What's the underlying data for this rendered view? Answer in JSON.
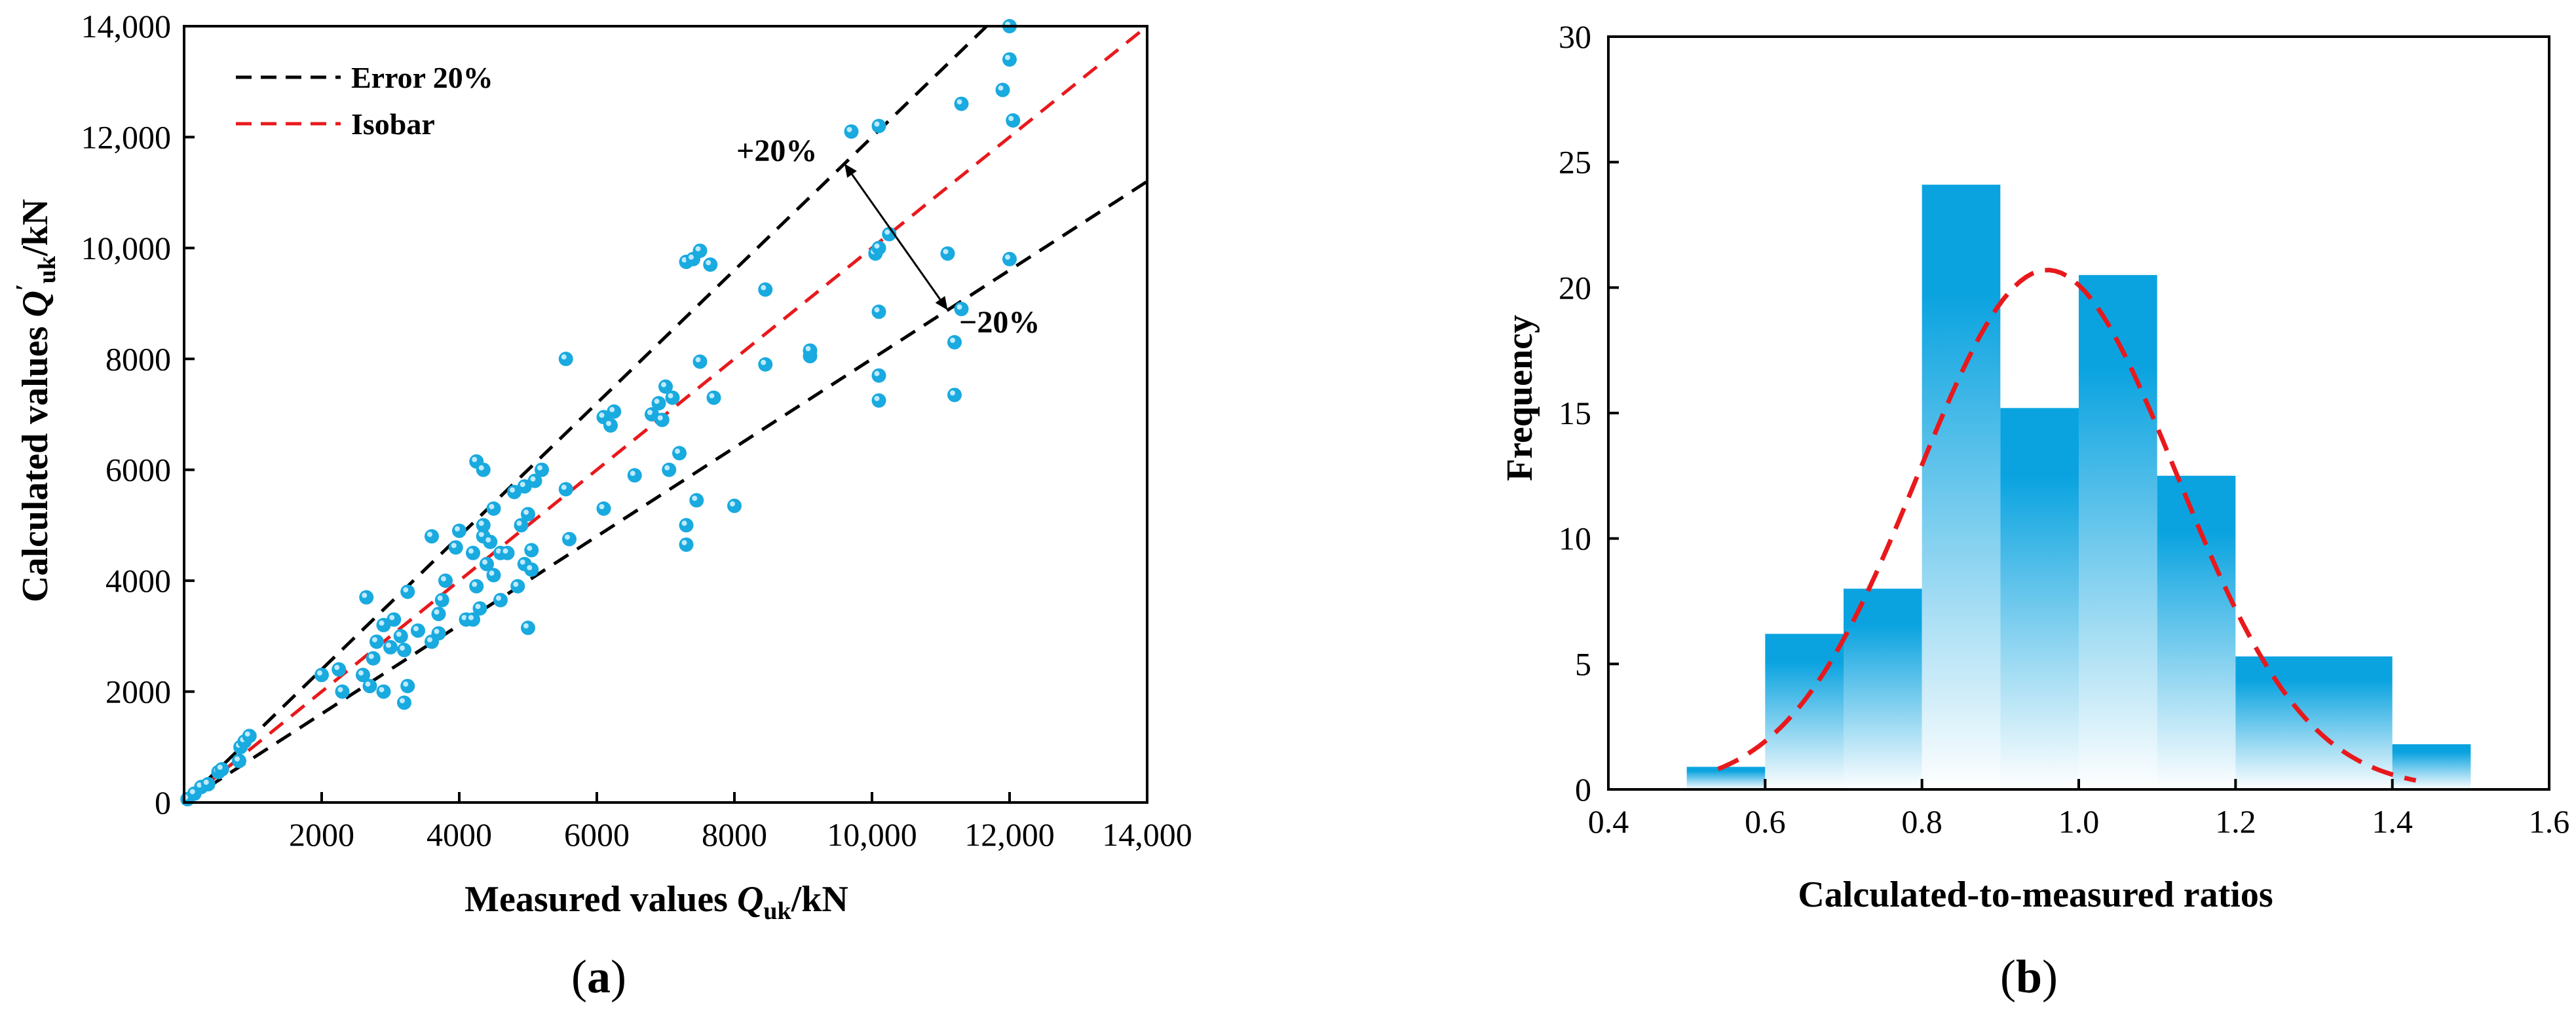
{
  "colors": {
    "axis": "#000000",
    "error_band": "#000000",
    "isobar": "#e8191c",
    "points": "#19aadf",
    "bar_top": "#0aa3e0",
    "bar_bottom": "#ffffff",
    "fit_curve": "#e8191c"
  },
  "chart_data": [
    {
      "type": "scatter",
      "panel_label": "(a)",
      "panel_letter": "a",
      "ylabel": {
        "prefix": "Calculated values ",
        "symbol": "Q",
        "prime": "′",
        "subscript": "uk",
        "suffix": "/kN"
      },
      "xlabel": {
        "prefix": "Measured values ",
        "symbol": "Q",
        "subscript": "uk",
        "suffix": "/kN"
      },
      "xlim": [
        0,
        14000
      ],
      "ylim": [
        0,
        14000
      ],
      "xticks": [
        2000,
        4000,
        6000,
        8000,
        10000,
        12000,
        14000
      ],
      "xtick_labels": [
        "2000",
        "4000",
        "6000",
        "8000",
        "10,000",
        "12,000",
        "14,000"
      ],
      "yticks": [
        0,
        2000,
        4000,
        6000,
        8000,
        10000,
        12000,
        14000
      ],
      "ytick_labels": [
        "0",
        "2000",
        "4000",
        "6000",
        "8000",
        "10,000",
        "12,000",
        "14,000"
      ],
      "legend": [
        {
          "label": "Error 20%",
          "style": "dashed-black"
        },
        {
          "label": "Isobar",
          "style": "dashed-red"
        }
      ],
      "lines": [
        {
          "name": "Error +20%",
          "slope": 1.2
        },
        {
          "name": "Isobar",
          "slope": 1.0
        },
        {
          "name": "Error −20%",
          "slope": 0.8
        }
      ],
      "annotations": {
        "plus": "+20%",
        "minus": "−20%"
      },
      "annotation_arrow": {
        "from": [
          9600,
          11520
        ],
        "to": [
          11100,
          8880
        ]
      },
      "points": [
        [
          50,
          60
        ],
        [
          150,
          160
        ],
        [
          250,
          280
        ],
        [
          350,
          330
        ],
        [
          500,
          550
        ],
        [
          550,
          600
        ],
        [
          800,
          750
        ],
        [
          820,
          1000
        ],
        [
          880,
          1100
        ],
        [
          950,
          1200
        ],
        [
          2000,
          2300
        ],
        [
          2250,
          2400
        ],
        [
          2300,
          2000
        ],
        [
          2600,
          2300
        ],
        [
          2650,
          3700
        ],
        [
          2700,
          2100
        ],
        [
          2750,
          2600
        ],
        [
          2800,
          2900
        ],
        [
          2900,
          3200
        ],
        [
          2900,
          2000
        ],
        [
          3000,
          2800
        ],
        [
          3050,
          3300
        ],
        [
          3150,
          3000
        ],
        [
          3200,
          1800
        ],
        [
          3200,
          2750
        ],
        [
          3250,
          3800
        ],
        [
          3250,
          2100
        ],
        [
          3400,
          3100
        ],
        [
          3600,
          2900
        ],
        [
          3600,
          4800
        ],
        [
          3700,
          3400
        ],
        [
          3700,
          3050
        ],
        [
          3750,
          3650
        ],
        [
          3800,
          4000
        ],
        [
          3950,
          4600
        ],
        [
          4000,
          4900
        ],
        [
          4100,
          3300
        ],
        [
          4200,
          4500
        ],
        [
          4200,
          3300
        ],
        [
          4250,
          6150
        ],
        [
          4250,
          3900
        ],
        [
          4300,
          3500
        ],
        [
          4350,
          4800
        ],
        [
          4350,
          5000
        ],
        [
          4350,
          6000
        ],
        [
          4400,
          4300
        ],
        [
          4450,
          4700
        ],
        [
          4500,
          5300
        ],
        [
          4500,
          4100
        ],
        [
          4600,
          3650
        ],
        [
          4600,
          4500
        ],
        [
          4700,
          4500
        ],
        [
          4800,
          5600
        ],
        [
          4850,
          3900
        ],
        [
          4900,
          5000
        ],
        [
          4950,
          5700
        ],
        [
          4950,
          4300
        ],
        [
          5000,
          5200
        ],
        [
          5000,
          3150
        ],
        [
          5050,
          4550
        ],
        [
          5050,
          4200
        ],
        [
          5100,
          5800
        ],
        [
          5200,
          6000
        ],
        [
          5550,
          8000
        ],
        [
          5550,
          5650
        ],
        [
          5600,
          4750
        ],
        [
          6100,
          5300
        ],
        [
          6100,
          6950
        ],
        [
          6200,
          6800
        ],
        [
          6250,
          7050
        ],
        [
          6550,
          5900
        ],
        [
          6800,
          7000
        ],
        [
          6900,
          7200
        ],
        [
          6950,
          6900
        ],
        [
          7000,
          7500
        ],
        [
          7050,
          6000
        ],
        [
          7100,
          7300
        ],
        [
          7200,
          6300
        ],
        [
          7300,
          5000
        ],
        [
          7300,
          4650
        ],
        [
          7300,
          9750
        ],
        [
          7400,
          9800
        ],
        [
          7450,
          5450
        ],
        [
          7500,
          7950
        ],
        [
          7500,
          9950
        ],
        [
          7650,
          9700
        ],
        [
          7700,
          7300
        ],
        [
          8000,
          5350
        ],
        [
          8450,
          7900
        ],
        [
          8450,
          9250
        ],
        [
          9100,
          8050
        ],
        [
          9100,
          8150
        ],
        [
          9700,
          12100
        ],
        [
          10050,
          9900
        ],
        [
          10100,
          10000
        ],
        [
          10100,
          7700
        ],
        [
          10100,
          12200
        ],
        [
          10100,
          8850
        ],
        [
          10100,
          7250
        ],
        [
          10250,
          10250
        ],
        [
          11100,
          9900
        ],
        [
          11200,
          8300
        ],
        [
          11300,
          12600
        ],
        [
          11200,
          7350
        ],
        [
          11300,
          8900
        ],
        [
          11900,
          12850
        ],
        [
          12000,
          13400
        ],
        [
          12000,
          9800
        ],
        [
          12050,
          12300
        ],
        [
          12000,
          14000
        ]
      ]
    },
    {
      "type": "bar",
      "subtype": "histogram",
      "panel_label": "(b)",
      "panel_letter": "b",
      "xlabel": "Calculated-to-measured ratios",
      "ylabel": "Frequency",
      "xlim": [
        0.4,
        1.6
      ],
      "ylim": [
        0,
        30
      ],
      "xticks": [
        0.4,
        0.6,
        0.8,
        1.0,
        1.2,
        1.4,
        1.6
      ],
      "xtick_labels": [
        "0.4",
        "0.6",
        "0.8",
        "1.0",
        "1.2",
        "1.4",
        "1.6"
      ],
      "yticks": [
        0,
        5,
        10,
        15,
        20,
        25,
        30
      ],
      "ytick_labels": [
        "0",
        "5",
        "10",
        "15",
        "20",
        "25",
        "30"
      ],
      "bins": [
        {
          "start": 0.5,
          "end": 0.6,
          "value": 0.9
        },
        {
          "start": 0.6,
          "end": 0.7,
          "value": 6.2
        },
        {
          "start": 0.7,
          "end": 0.8,
          "value": 8.0
        },
        {
          "start": 0.8,
          "end": 0.9,
          "value": 24.1
        },
        {
          "start": 0.9,
          "end": 1.0,
          "value": 15.2
        },
        {
          "start": 1.0,
          "end": 1.1,
          "value": 20.5
        },
        {
          "start": 1.1,
          "end": 1.2,
          "value": 12.5
        },
        {
          "start": 1.2,
          "end": 1.3,
          "value": 5.3
        },
        {
          "start": 1.3,
          "end": 1.4,
          "value": 5.3
        },
        {
          "start": 1.4,
          "end": 1.5,
          "value": 1.8
        }
      ],
      "fit_curve": {
        "type": "normal",
        "mean": 0.96,
        "peak": 20.7,
        "sd": 0.165,
        "x_range": [
          0.54,
          1.43
        ]
      }
    }
  ]
}
